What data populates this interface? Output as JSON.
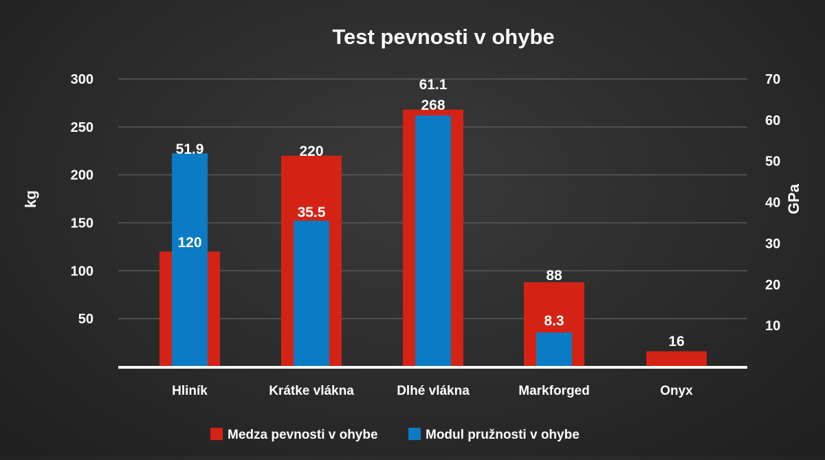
{
  "chart_data": {
    "type": "bar",
    "title": "Test pevnosti v ohybe",
    "categories": [
      "Hliník",
      "Krátke vlákna",
      "Dlhé vlákna",
      "Markforged",
      "Onyx"
    ],
    "series": [
      {
        "name": "Medza pevnosti v ohybe",
        "axis": "left",
        "color": "#d42314",
        "values": [
          120,
          220,
          268,
          88,
          16
        ],
        "labels": [
          "120",
          "220",
          "268",
          "88",
          "16"
        ]
      },
      {
        "name": "Modul pružnosti v ohybe",
        "axis": "right",
        "color": "#0a7bc4",
        "values": [
          51.9,
          35.5,
          61.1,
          8.3,
          null
        ],
        "labels": [
          "51.9",
          "35.5",
          "61.1",
          "8.3",
          ""
        ]
      }
    ],
    "ylabel_left": "kg",
    "ylabel_right": "GPa",
    "ylim_left": [
      0,
      300
    ],
    "ylim_right": [
      0,
      70
    ],
    "yticks_left": [
      "50",
      "100",
      "150",
      "200",
      "250",
      "300"
    ],
    "yticks_right": [
      "10",
      "20",
      "30",
      "40",
      "50",
      "60",
      "70"
    ],
    "grid": true,
    "legend_position": "bottom-center"
  },
  "colors": {
    "background": "#2b2b2b",
    "grid": "#5a5a5a",
    "baseline": "#ffffff",
    "text": "#ffffff"
  }
}
